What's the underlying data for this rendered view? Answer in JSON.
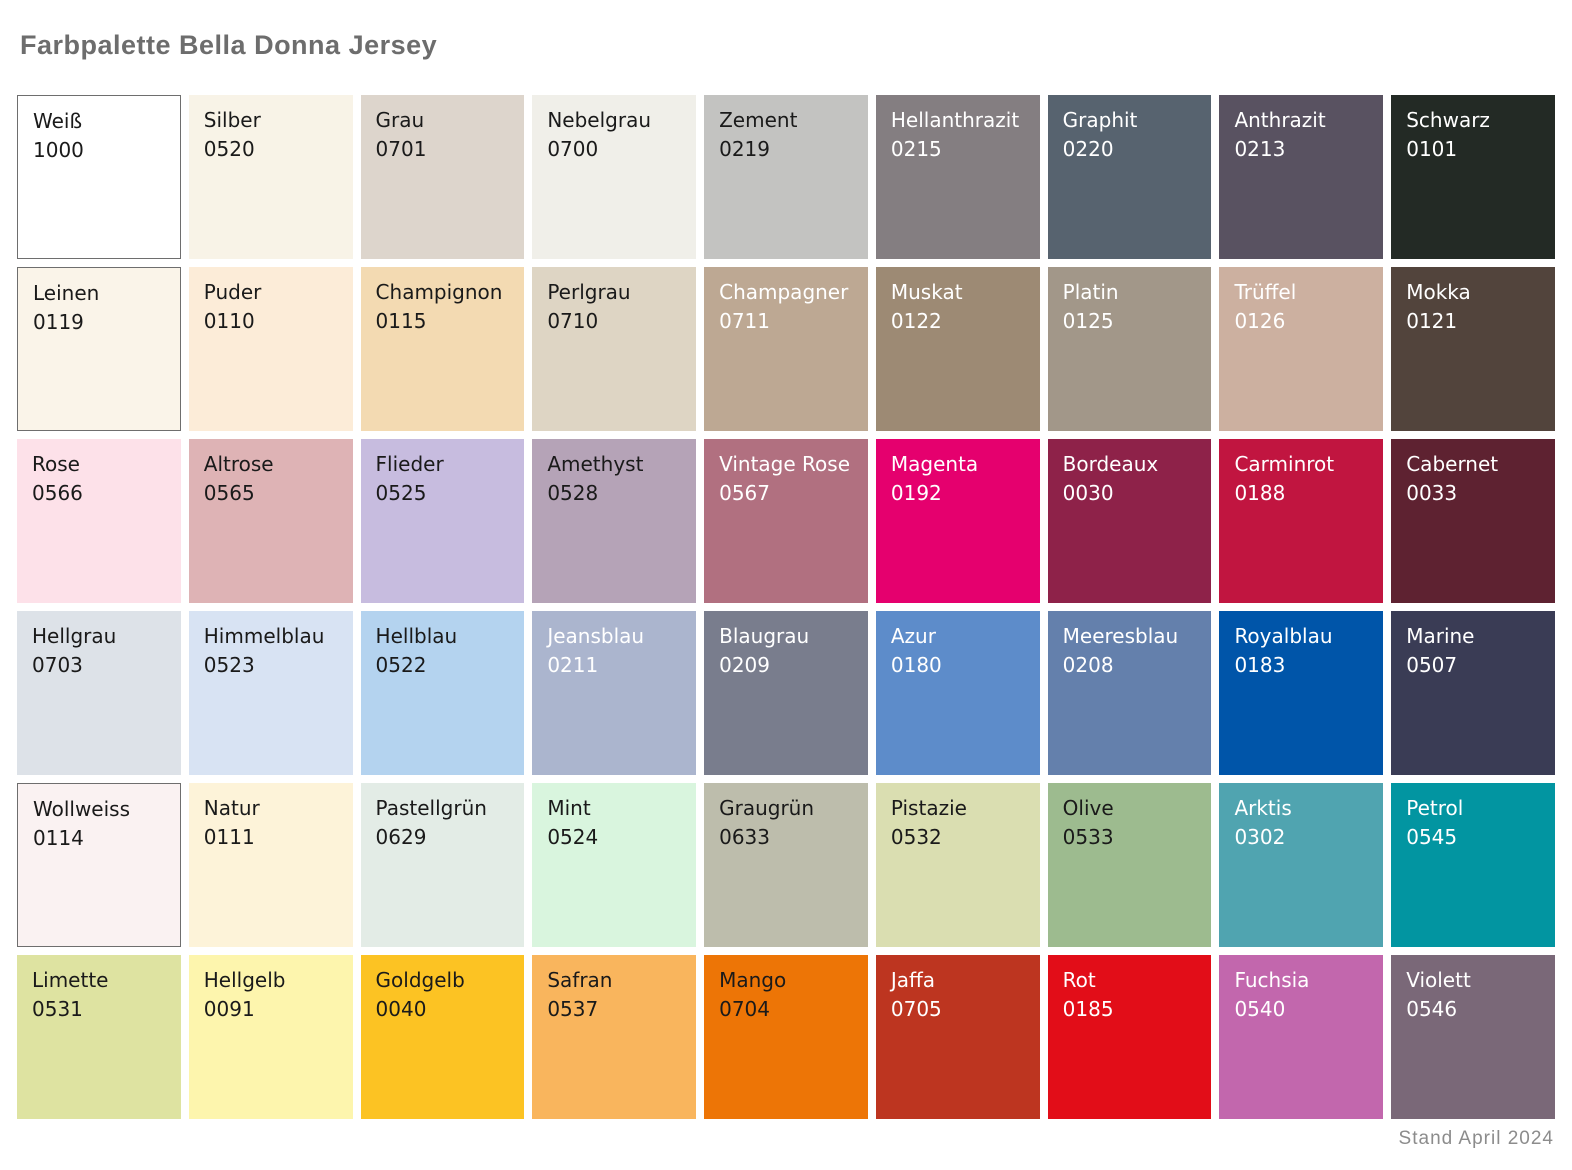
{
  "title": "Farbpalette Bella Donna Jersey",
  "footer": "Stand April 2024",
  "palette": {
    "columns": 9,
    "rows": 6,
    "dark_text_color": "#1a1a1a",
    "light_text_color": "#ffffff",
    "swatch_border_color": "#6e6e6e",
    "swatches": [
      {
        "name": "Weiß",
        "code": "1000",
        "color": "#ffffff",
        "text_color": "#1a1a1a",
        "border": true
      },
      {
        "name": "Silber",
        "code": "0520",
        "color": "#f8f3e7",
        "text_color": "#1a1a1a",
        "border": false
      },
      {
        "name": "Grau",
        "code": "0701",
        "color": "#ddd5cc",
        "text_color": "#1a1a1a",
        "border": false
      },
      {
        "name": "Nebelgrau",
        "code": "0700",
        "color": "#f0efe9",
        "text_color": "#1a1a1a",
        "border": false
      },
      {
        "name": "Zement",
        "code": "0219",
        "color": "#c3c3c1",
        "text_color": "#1a1a1a",
        "border": false
      },
      {
        "name": "Hellanthrazit",
        "code": "0215",
        "color": "#847e81",
        "text_color": "#ffffff",
        "border": false
      },
      {
        "name": "Graphit",
        "code": "0220",
        "color": "#57636f",
        "text_color": "#ffffff",
        "border": false
      },
      {
        "name": "Anthrazit",
        "code": "0213",
        "color": "#595261",
        "text_color": "#ffffff",
        "border": false
      },
      {
        "name": "Schwarz",
        "code": "0101",
        "color": "#232a25",
        "text_color": "#ffffff",
        "border": false
      },
      {
        "name": "Leinen",
        "code": "0119",
        "color": "#faf4e9",
        "text_color": "#1a1a1a",
        "border": true
      },
      {
        "name": "Puder",
        "code": "0110",
        "color": "#fcecd8",
        "text_color": "#1a1a1a",
        "border": false
      },
      {
        "name": "Champignon",
        "code": "0115",
        "color": "#f3dab2",
        "text_color": "#1a1a1a",
        "border": false
      },
      {
        "name": "Perlgrau",
        "code": "0710",
        "color": "#ded5c4",
        "text_color": "#1a1a1a",
        "border": false
      },
      {
        "name": "Champagner",
        "code": "0711",
        "color": "#bda893",
        "text_color": "#ffffff",
        "border": false
      },
      {
        "name": "Muskat",
        "code": "0122",
        "color": "#9d8a74",
        "text_color": "#ffffff",
        "border": false
      },
      {
        "name": "Platin",
        "code": "0125",
        "color": "#a29789",
        "text_color": "#ffffff",
        "border": false
      },
      {
        "name": "Trüffel",
        "code": "0126",
        "color": "#ccb0a0",
        "text_color": "#ffffff",
        "border": false
      },
      {
        "name": "Mokka",
        "code": "0121",
        "color": "#52443c",
        "text_color": "#ffffff",
        "border": false
      },
      {
        "name": "Rose",
        "code": "0566",
        "color": "#fde1e9",
        "text_color": "#1a1a1a",
        "border": false
      },
      {
        "name": "Altrose",
        "code": "0565",
        "color": "#deb3b5",
        "text_color": "#1a1a1a",
        "border": false
      },
      {
        "name": "Flieder",
        "code": "0525",
        "color": "#c7bcdf",
        "text_color": "#1a1a1a",
        "border": false
      },
      {
        "name": "Amethyst",
        "code": "0528",
        "color": "#b5a3b7",
        "text_color": "#1a1a1a",
        "border": false
      },
      {
        "name": "Vintage Rose",
        "code": "0567",
        "color": "#b17080",
        "text_color": "#ffffff",
        "border": false
      },
      {
        "name": "Magenta",
        "code": "0192",
        "color": "#e5006e",
        "text_color": "#ffffff",
        "border": false
      },
      {
        "name": "Bordeaux",
        "code": "0030",
        "color": "#8e2249",
        "text_color": "#ffffff",
        "border": false
      },
      {
        "name": "Carminrot",
        "code": "0188",
        "color": "#c11540",
        "text_color": "#ffffff",
        "border": false
      },
      {
        "name": "Cabernet",
        "code": "0033",
        "color": "#5e2231",
        "text_color": "#ffffff",
        "border": false
      },
      {
        "name": "Hellgrau",
        "code": "0703",
        "color": "#dde2e8",
        "text_color": "#1a1a1a",
        "border": false
      },
      {
        "name": "Himmelblau",
        "code": "0523",
        "color": "#d8e3f3",
        "text_color": "#1a1a1a",
        "border": false
      },
      {
        "name": "Hellblau",
        "code": "0522",
        "color": "#b4d3ef",
        "text_color": "#1a1a1a",
        "border": false
      },
      {
        "name": "Jeansblau",
        "code": "0211",
        "color": "#abb5ce",
        "text_color": "#ffffff",
        "border": false
      },
      {
        "name": "Blaugrau",
        "code": "0209",
        "color": "#797d8d",
        "text_color": "#ffffff",
        "border": false
      },
      {
        "name": "Azur",
        "code": "0180",
        "color": "#5d8cca",
        "text_color": "#ffffff",
        "border": false
      },
      {
        "name": "Meeresblau",
        "code": "0208",
        "color": "#6480ac",
        "text_color": "#ffffff",
        "border": false
      },
      {
        "name": "Royalblau",
        "code": "0183",
        "color": "#0055a9",
        "text_color": "#ffffff",
        "border": false
      },
      {
        "name": "Marine",
        "code": "0507",
        "color": "#3a3c55",
        "text_color": "#ffffff",
        "border": false
      },
      {
        "name": "Wollweiss",
        "code": "0114",
        "color": "#faf2f2",
        "text_color": "#1a1a1a",
        "border": true
      },
      {
        "name": "Natur",
        "code": "0111",
        "color": "#fdf3d9",
        "text_color": "#1a1a1a",
        "border": false
      },
      {
        "name": "Pastellgrün",
        "code": "0629",
        "color": "#e3ece6",
        "text_color": "#1a1a1a",
        "border": false
      },
      {
        "name": "Mint",
        "code": "0524",
        "color": "#d9f5de",
        "text_color": "#1a1a1a",
        "border": false
      },
      {
        "name": "Graugrün",
        "code": "0633",
        "color": "#bdbdac",
        "text_color": "#1a1a1a",
        "border": false
      },
      {
        "name": "Pistazie",
        "code": "0532",
        "color": "#dadeb1",
        "text_color": "#1a1a1a",
        "border": false
      },
      {
        "name": "Olive",
        "code": "0533",
        "color": "#9dbb8f",
        "text_color": "#1a1a1a",
        "border": false
      },
      {
        "name": "Arktis",
        "code": "0302",
        "color": "#50a4b0",
        "text_color": "#ffffff",
        "border": false
      },
      {
        "name": "Petrol",
        "code": "0545",
        "color": "#0295a1",
        "text_color": "#ffffff",
        "border": false
      },
      {
        "name": "Limette",
        "code": "0531",
        "color": "#dee3a1",
        "text_color": "#1a1a1a",
        "border": false
      },
      {
        "name": "Hellgelb",
        "code": "0091",
        "color": "#fdf5ad",
        "text_color": "#1a1a1a",
        "border": false
      },
      {
        "name": "Goldgelb",
        "code": "0040",
        "color": "#fcc323",
        "text_color": "#1a1a1a",
        "border": false
      },
      {
        "name": "Safran",
        "code": "0537",
        "color": "#f9b55d",
        "text_color": "#1a1a1a",
        "border": false
      },
      {
        "name": "Mango",
        "code": "0704",
        "color": "#ed7506",
        "text_color": "#1a1a1a",
        "border": false
      },
      {
        "name": "Jaffa",
        "code": "0705",
        "color": "#bd3520",
        "text_color": "#ffffff",
        "border": false
      },
      {
        "name": "Rot",
        "code": "0185",
        "color": "#e20d18",
        "text_color": "#ffffff",
        "border": false
      },
      {
        "name": "Fuchsia",
        "code": "0540",
        "color": "#c267ad",
        "text_color": "#ffffff",
        "border": false
      },
      {
        "name": "Violett",
        "code": "0546",
        "color": "#7a6878",
        "text_color": "#ffffff",
        "border": false
      }
    ]
  }
}
